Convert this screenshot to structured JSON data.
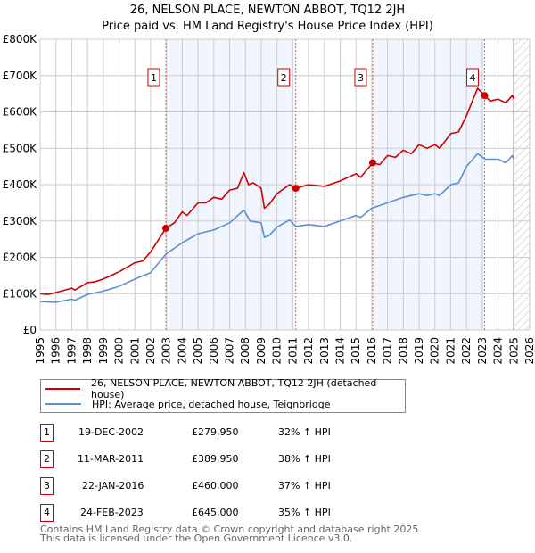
{
  "chart_data": {
    "type": "line",
    "title": "26, NELSON PLACE, NEWTON ABBOT, TQ12 2JH",
    "subtitle": "Price paid vs. HM Land Registry's House Price Index (HPI)",
    "xlim": [
      1995,
      2026
    ],
    "ylim": [
      0,
      800000
    ],
    "ytick_labels": [
      "£0",
      "£100K",
      "£200K",
      "£300K",
      "£400K",
      "£500K",
      "£600K",
      "£700K",
      "£800K"
    ],
    "ytick_values": [
      0,
      100000,
      200000,
      300000,
      400000,
      500000,
      600000,
      700000,
      800000
    ],
    "xtick_labels": [
      "1995",
      "1996",
      "1997",
      "1998",
      "1999",
      "2000",
      "2001",
      "2002",
      "2003",
      "2004",
      "2005",
      "2006",
      "2007",
      "2008",
      "2009",
      "2010",
      "2011",
      "2012",
      "2013",
      "2014",
      "2015",
      "2016",
      "2017",
      "2018",
      "2019",
      "2020",
      "2021",
      "2022",
      "2023",
      "2024",
      "2025",
      "2026"
    ],
    "grid": true,
    "forecast_hatch_from": 2025.0,
    "series": [
      {
        "name": "26, NELSON PLACE, NEWTON ABBOT, TQ12 2JH (detached house)",
        "color": "#cc0000",
        "x": [
          1995,
          1995.5,
          1996,
          1997,
          1997.2,
          1998,
          1998.5,
          1999,
          2000,
          2001,
          2001.5,
          2002,
          2002.96,
          2003.5,
          2004,
          2004.3,
          2005,
          2005.5,
          2006,
          2006.5,
          2007,
          2007.5,
          2007.9,
          2008.2,
          2008.5,
          2009,
          2009.2,
          2009.5,
          2010,
          2010.8,
          2011.2,
          2012,
          2013,
          2014,
          2015,
          2015.3,
          2016.06,
          2016.5,
          2017,
          2017.5,
          2018,
          2018.5,
          2019,
          2019.5,
          2020,
          2020.3,
          2021,
          2021.5,
          2022,
          2022.7,
          2023.15,
          2023.5,
          2024,
          2024.5,
          2024.9,
          2025
        ],
        "y": [
          100,
          98,
          103,
          115,
          110,
          130,
          133,
          140,
          160,
          185,
          190,
          215,
          280,
          295,
          325,
          315,
          350,
          350,
          365,
          360,
          385,
          390,
          433,
          400,
          405,
          390,
          335,
          345,
          375,
          400,
          390,
          400,
          395,
          410,
          430,
          420,
          460,
          455,
          480,
          475,
          495,
          485,
          510,
          500,
          510,
          500,
          540,
          545,
          590,
          665,
          645,
          630,
          635,
          625,
          645,
          635
        ]
      },
      {
        "name": "HPI: Average price, detached house, Teignbridge",
        "color": "#5b8fd0",
        "x": [
          1995,
          1996,
          1997,
          1997.2,
          1998,
          1999,
          2000,
          2001,
          2002,
          2003,
          2004,
          2005,
          2006,
          2007,
          2007.9,
          2008.3,
          2009,
          2009.2,
          2009.5,
          2010,
          2010.8,
          2011.2,
          2012,
          2013,
          2014,
          2015,
          2015.3,
          2016,
          2017,
          2018,
          2019,
          2019.5,
          2020,
          2020.3,
          2021,
          2021.5,
          2022,
          2022.7,
          2023.2,
          2024,
          2024.5,
          2024.9,
          2025
        ],
        "y": [
          78,
          76,
          85,
          82,
          98,
          107,
          120,
          140,
          158,
          210,
          240,
          265,
          275,
          295,
          330,
          300,
          295,
          255,
          260,
          283,
          303,
          285,
          290,
          285,
          300,
          315,
          310,
          335,
          350,
          365,
          375,
          370,
          375,
          370,
          400,
          405,
          450,
          485,
          470,
          470,
          460,
          480,
          470
        ]
      }
    ],
    "y_units_note": "series y values in £K",
    "sales": [
      {
        "n": "1",
        "date": "19-DEC-2002",
        "x": 2002.96,
        "price": "£279,950",
        "value": 279950,
        "hpi": "32% ↑ HPI"
      },
      {
        "n": "2",
        "date": "11-MAR-2011",
        "x": 2011.19,
        "price": "£389,950",
        "value": 389950,
        "hpi": "38% ↑ HPI"
      },
      {
        "n": "3",
        "date": "22-JAN-2016",
        "x": 2016.06,
        "price": "£460,000",
        "value": 460000,
        "hpi": "37% ↑ HPI"
      },
      {
        "n": "4",
        "date": "24-FEB-2023",
        "x": 2023.15,
        "price": "£645,000",
        "value": 645000,
        "hpi": "35% ↑ HPI"
      }
    ]
  },
  "footer": {
    "line1": "Contains HM Land Registry data © Crown copyright and database right 2025.",
    "line2": "This data is licensed under the Open Government Licence v3.0."
  }
}
